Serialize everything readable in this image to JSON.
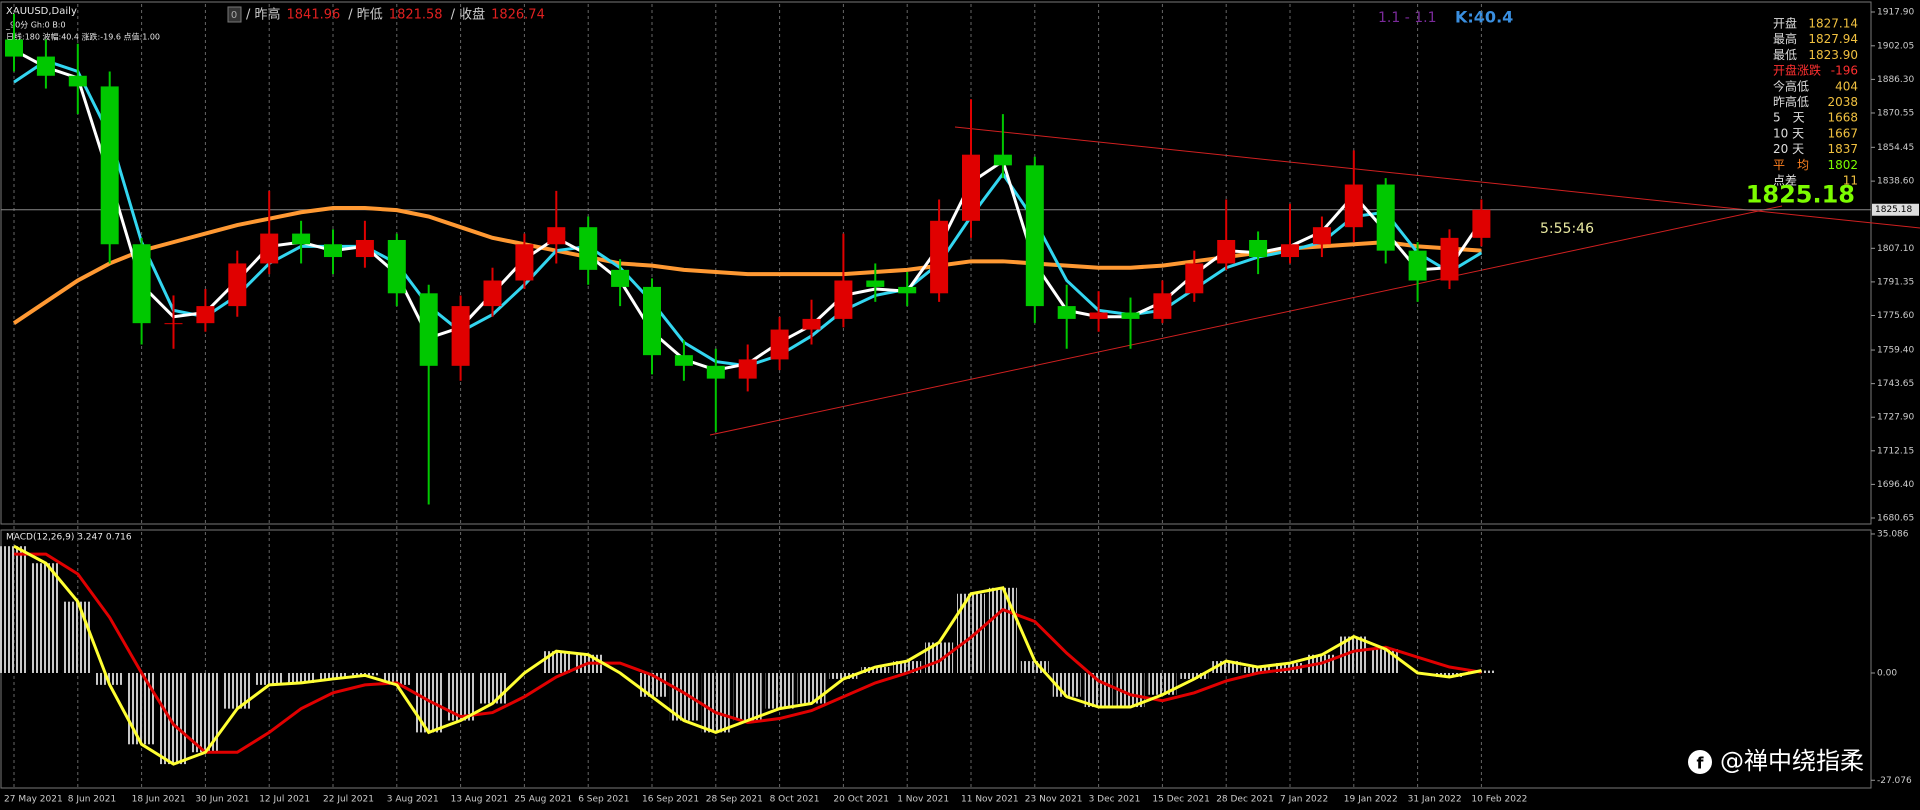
{
  "header": {
    "symbol": "XAUUSD,Daily",
    "line2": "_90分 Gh:0 B:0",
    "line3": "日线:180 波幅:40.4 涨跌:-19.6 点值:1.00"
  },
  "topbar": {
    "box": "0",
    "items": [
      {
        "label": "/ 昨高",
        "value": "1841.96"
      },
      {
        "label": "/ 昨低",
        "value": "1821.58"
      },
      {
        "label": "/ 收盘",
        "value": "1826.74"
      }
    ],
    "ratio": "1.1 - 1.1",
    "k": "K:40.4"
  },
  "info_panel": [
    {
      "label": "开盘",
      "value": "1827.14"
    },
    {
      "label": "最高",
      "value": "1827.94"
    },
    {
      "label": "最低",
      "value": "1823.90"
    },
    {
      "label": "开盘涨跌",
      "value": "-196"
    },
    {
      "label": "今高低",
      "value": "404"
    },
    {
      "label": "昨高低",
      "value": "2038"
    },
    {
      "label": "5　天",
      "value": "1668"
    },
    {
      "label": "10 天",
      "value": "1667"
    },
    {
      "label": "20 天",
      "value": "1837"
    },
    {
      "label": "平　均",
      "value": "1802"
    },
    {
      "label": "点差",
      "value": "11"
    }
  ],
  "current_price": 1825.18,
  "timer": "5:55:46",
  "watermark": "@禅中绕指柔",
  "chart_data": [
    {
      "type": "candlestick",
      "up_color": "#e00000",
      "down_color": "#00c800",
      "categories": [
        "27 May 2021",
        null,
        "8 Jun 2021",
        null,
        "18 Jun 2021",
        null,
        "30 Jun 2021",
        null,
        "12 Jul 2021",
        null,
        "22 Jul 2021",
        null,
        "3 Aug 2021",
        null,
        "13 Aug 2021",
        null,
        "25 Aug 2021",
        null,
        "6 Sep 2021",
        null,
        "16 Sep 2021",
        null,
        "28 Sep 2021",
        null,
        "8 Oct 2021",
        null,
        "20 Oct 2021",
        null,
        "1 Nov 2021",
        null,
        "11 Nov 2021",
        null,
        "23 Nov 2021",
        null,
        "3 Dec 2021",
        null,
        "15 Dec 2021",
        null,
        "28 Dec 2021",
        null,
        "7 Jan 2022",
        null,
        "19 Jan 2022",
        null,
        "31 Jan 2022",
        null,
        "10 Feb 2022"
      ],
      "open": [
        1905,
        1897,
        1888,
        1883,
        1809,
        1772,
        1772,
        1780,
        1800,
        1814,
        1809,
        1803,
        1811,
        1786,
        1752,
        1780,
        1792,
        1809,
        1817,
        1797,
        1789,
        1757,
        1752,
        1746,
        1755,
        1769,
        1774,
        1792,
        1789,
        1786,
        1820,
        1851,
        1846,
        1780,
        1774,
        1777,
        1774,
        1786,
        1800,
        1811,
        1803,
        1809,
        1817,
        1837,
        1806,
        1792,
        1812
      ],
      "high": [
        1917,
        1905,
        1903,
        1890,
        1812,
        1785,
        1788,
        1806,
        1834,
        1820,
        1816,
        1820,
        1814,
        1790,
        1785,
        1798,
        1814,
        1834,
        1822,
        1802,
        1793,
        1764,
        1760,
        1762,
        1775,
        1783,
        1814,
        1800,
        1796,
        1830,
        1877,
        1870,
        1850,
        1790,
        1787,
        1784,
        1792,
        1806,
        1830,
        1815,
        1828,
        1822,
        1853,
        1840,
        1810,
        1816,
        1830
      ],
      "low": [
        1890,
        1882,
        1870,
        1800,
        1762,
        1760,
        1768,
        1775,
        1795,
        1800,
        1795,
        1798,
        1780,
        1687,
        1745,
        1775,
        1788,
        1800,
        1790,
        1780,
        1748,
        1745,
        1721,
        1740,
        1750,
        1762,
        1770,
        1782,
        1780,
        1782,
        1812,
        1840,
        1772,
        1760,
        1768,
        1760,
        1772,
        1782,
        1797,
        1795,
        1800,
        1803,
        1810,
        1800,
        1782,
        1788,
        1808
      ],
      "close": [
        1897,
        1888,
        1883,
        1809,
        1772,
        1772,
        1780,
        1800,
        1814,
        1809,
        1803,
        1811,
        1786,
        1752,
        1780,
        1792,
        1809,
        1817,
        1797,
        1789,
        1757,
        1752,
        1746,
        1755,
        1769,
        1774,
        1792,
        1789,
        1786,
        1820,
        1851,
        1846,
        1780,
        1774,
        1777,
        1774,
        1786,
        1800,
        1811,
        1803,
        1809,
        1817,
        1837,
        1806,
        1792,
        1812,
        1825.18
      ],
      "lines": [
        {
          "color": "#ff9933",
          "values": [
            1772,
            1782,
            1792,
            1800,
            1806,
            1810,
            1814,
            1818,
            1821,
            1824,
            1826,
            1826,
            1825,
            1822,
            1817,
            1812,
            1809,
            1806,
            1803,
            1800,
            1799,
            1797,
            1796,
            1795,
            1795,
            1795,
            1795,
            1796,
            1797,
            1799,
            1801,
            1801,
            1800,
            1799,
            1798,
            1798,
            1799,
            1801,
            1803,
            1805,
            1807,
            1808,
            1809,
            1810,
            1808,
            1807,
            1806
          ]
        },
        {
          "color": "#33d6f0",
          "values": [
            1885,
            1895,
            1890,
            1860,
            1810,
            1778,
            1775,
            1785,
            1800,
            1808,
            1808,
            1808,
            1800,
            1780,
            1768,
            1776,
            1790,
            1806,
            1808,
            1798,
            1782,
            1763,
            1754,
            1752,
            1757,
            1766,
            1778,
            1785,
            1788,
            1800,
            1822,
            1842,
            1820,
            1792,
            1778,
            1776,
            1778,
            1788,
            1798,
            1803,
            1806,
            1810,
            1822,
            1824,
            1805,
            1796,
            1805
          ]
        },
        {
          "color": "#ffffff",
          "values": [
            1900,
            1892,
            1887,
            1840,
            1790,
            1775,
            1777,
            1792,
            1808,
            1810,
            1806,
            1808,
            1795,
            1765,
            1770,
            1786,
            1802,
            1812,
            1804,
            1792,
            1768,
            1755,
            1750,
            1753,
            1763,
            1771,
            1785,
            1788,
            1787,
            1808,
            1838,
            1848,
            1800,
            1778,
            1775,
            1775,
            1782,
            1795,
            1806,
            1805,
            1808,
            1815,
            1832,
            1815,
            1797,
            1798,
            1820
          ]
        }
      ],
      "ylim": [
        1678.77,
        1921.65
      ],
      "yticks": [
        {
          "value": 1917.9,
          "label": "1917.90"
        },
        1902.05,
        {
          "value": 1886.3,
          "label": "1886.30"
        },
        1870.55,
        1854.45,
        {
          "value": 1838.6,
          "label": "1838.60"
        },
        {
          "value": 1807.1,
          "label": "1807.10"
        },
        1791.35,
        {
          "value": 1775.6,
          "label": "1775.60"
        },
        {
          "value": 1759.4,
          "label": "1759.40"
        },
        1743.65,
        {
          "value": 1727.9,
          "label": "1727.90"
        },
        1712.15,
        {
          "value": 1696.4,
          "label": "1696.40"
        },
        1680.65
      ]
    },
    {
      "type": "macd",
      "title": "MACD(12,26,9) 3.247 0.716",
      "hist_color": "#c8c8c8",
      "histogram": [
        32,
        27.7,
        18,
        -3,
        -18,
        -23,
        -20,
        -9,
        -3,
        -2.5,
        -1.5,
        -0.6,
        -3,
        -15,
        -12,
        -7.7,
        0,
        5.5,
        4.6,
        0,
        -6,
        -12,
        -15,
        -12,
        -9,
        -7.7,
        -1.5,
        1.5,
        3,
        7.7,
        20,
        21.5,
        3,
        -6,
        -8.6,
        -8.6,
        -5.5,
        -1.5,
        3,
        1.5,
        2.5,
        4.6,
        9.2,
        6,
        0,
        -1,
        0.6
      ],
      "lines": [
        {
          "color": "#e00000",
          "values": [
            30,
            30,
            25,
            14,
            0,
            -13,
            -20,
            -20,
            -15,
            -9,
            -5,
            -3,
            -2.5,
            -7,
            -11,
            -10,
            -6,
            -1,
            2.5,
            2.5,
            -0.5,
            -5,
            -10,
            -12.5,
            -11.5,
            -9.5,
            -6,
            -2.5,
            0,
            3,
            9,
            16,
            13,
            5,
            -2,
            -5.5,
            -7,
            -5,
            -2,
            0,
            1,
            2.5,
            5.5,
            6.5,
            4,
            1.5,
            0.2
          ]
        },
        {
          "color": "#ffff33",
          "values": [
            32,
            27.7,
            18,
            -3,
            -18,
            -23,
            -20,
            -9,
            -3,
            -2.5,
            -1.5,
            -0.6,
            -3,
            -15,
            -12,
            -7.7,
            0,
            5.5,
            4.6,
            0,
            -6,
            -12,
            -15,
            -12,
            -9,
            -7.7,
            -1.5,
            1.5,
            3,
            7.7,
            20,
            21.5,
            3,
            -6,
            -8.6,
            -8.6,
            -5.5,
            -1.5,
            3,
            1.5,
            2.5,
            4.6,
            9.2,
            6,
            0,
            -1,
            0.6
          ]
        }
      ],
      "ylim": [
        -29.03,
        36.09
      ],
      "yticks": [
        35.086,
        {
          "value": 0,
          "label": "0.00"
        },
        -27.076
      ]
    }
  ]
}
